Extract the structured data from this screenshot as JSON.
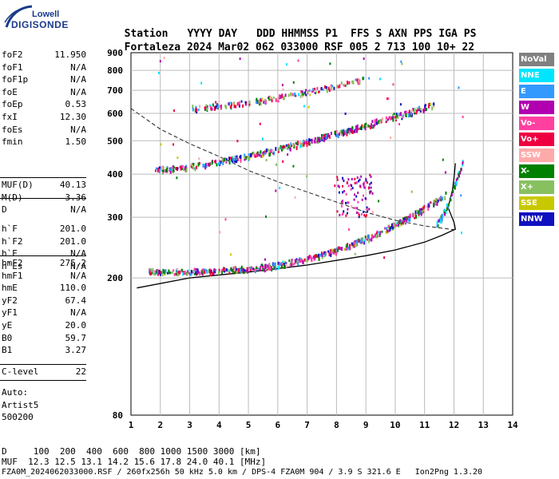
{
  "logo": {
    "line1": "Lowell",
    "line2": "DIGISONDE"
  },
  "header": {
    "labels": [
      "Station",
      "YYYY DAY",
      "DDD HHMMSS",
      "P1",
      "FFS",
      "S",
      "AXN",
      "PPS",
      "IGA",
      "PS"
    ],
    "station": "Fortaleza",
    "year": "2024",
    "day": "Mar02",
    "doy": "062",
    "time": "033000",
    "p1": "RSF",
    "ffs": "005",
    "s": "2",
    "axn": "713",
    "pps": "100",
    "iga": "10+",
    "ps": "22"
  },
  "params_group1": [
    {
      "k": "foF2",
      "v": "11.950"
    },
    {
      "k": "foF1",
      "v": "N/A"
    },
    {
      "k": "foF1p",
      "v": "N/A"
    },
    {
      "k": "foE",
      "v": "N/A"
    },
    {
      "k": "foEp",
      "v": "0.53"
    },
    {
      "k": "fxI",
      "v": "12.30"
    },
    {
      "k": "foEs",
      "v": "N/A"
    },
    {
      "k": "fmin",
      "v": "1.50"
    }
  ],
  "params_group2": [
    {
      "k": "MUF(D)",
      "v": "40.13"
    },
    {
      "k": "M(D)",
      "v": "3.36"
    },
    {
      "k": "D",
      "v": "N/A"
    }
  ],
  "params_group3": [
    {
      "k": "h`F",
      "v": "201.0"
    },
    {
      "k": "h`F2",
      "v": "201.0"
    },
    {
      "k": "h`E",
      "v": "N/A"
    },
    {
      "k": "h`Es",
      "v": "N/A"
    }
  ],
  "params_group4": [
    {
      "k": "hmF2",
      "v": "275.2"
    },
    {
      "k": "hmF1",
      "v": "N/A"
    },
    {
      "k": "hmE",
      "v": "110.0"
    },
    {
      "k": "yF2",
      "v": "67.4"
    },
    {
      "k": "yF1",
      "v": "N/A"
    },
    {
      "k": "yE",
      "v": "20.0"
    },
    {
      "k": "B0",
      "v": "59.7"
    },
    {
      "k": "B1",
      "v": "3.27"
    }
  ],
  "params_group5": [
    {
      "k": "C-level",
      "v": "22"
    }
  ],
  "auto": {
    "line1": "Auto:",
    "line2": "Artist5",
    "line3": "500200"
  },
  "legend": [
    {
      "label": "NoVal",
      "bg": "#808080",
      "fg": "#ffffff"
    },
    {
      "label": "NNE",
      "bg": "#00e5ff",
      "fg": "#ffffff"
    },
    {
      "label": "E",
      "bg": "#3399ff",
      "fg": "#ffffff"
    },
    {
      "label": "W",
      "bg": "#b000b0",
      "fg": "#ffffff"
    },
    {
      "label": "Vo-",
      "bg": "#ff40a0",
      "fg": "#ffffff"
    },
    {
      "label": "Vo+",
      "bg": "#ee0040",
      "fg": "#ffffff"
    },
    {
      "label": "SSW",
      "bg": "#ffaaaa",
      "fg": "#ffffff"
    },
    {
      "label": "X-",
      "bg": "#008000",
      "fg": "#ffffff"
    },
    {
      "label": "X+",
      "bg": "#88c060",
      "fg": "#ffffff"
    },
    {
      "label": "SSE",
      "bg": "#c8c800",
      "fg": "#ffffff"
    },
    {
      "label": "NNW",
      "bg": "#1010c0",
      "fg": "#ffffff"
    }
  ],
  "chart_data": {
    "type": "scatter",
    "xlabel": "",
    "ylabel": "",
    "xlim": [
      1,
      14
    ],
    "ylim": [
      80,
      900
    ],
    "yscale": "log",
    "xticks": [
      "1",
      "2",
      "3",
      "4",
      "5",
      "6",
      "7",
      "8",
      "9",
      "10",
      "11",
      "12",
      "13",
      "14"
    ],
    "yticks": [
      "80",
      "200",
      "300",
      "400",
      "500",
      "600",
      "700",
      "800",
      "900"
    ],
    "grid": true,
    "profile_solid": [
      [
        1.2,
        187
      ],
      [
        3,
        200
      ],
      [
        5,
        208
      ],
      [
        7,
        218
      ],
      [
        9,
        232
      ],
      [
        10,
        241
      ],
      [
        11,
        254
      ],
      [
        11.6,
        266
      ],
      [
        12.05,
        277
      ],
      [
        12.0,
        290
      ],
      [
        11.8,
        320
      ],
      [
        11.95,
        360
      ],
      [
        12.0,
        390
      ],
      [
        12.05,
        430
      ]
    ],
    "profile_dashed": [
      [
        1.0,
        620
      ],
      [
        2,
        540
      ],
      [
        3,
        490
      ],
      [
        4,
        450
      ],
      [
        5,
        410
      ],
      [
        6,
        380
      ],
      [
        7,
        355
      ],
      [
        8,
        332
      ],
      [
        9,
        310
      ],
      [
        10,
        294
      ],
      [
        11,
        283
      ],
      [
        12,
        276
      ]
    ],
    "traces": [
      {
        "name": "F2 1st hop",
        "f_start": 1.6,
        "f_end": 11.7,
        "h_start": 210,
        "h_end": 350
      },
      {
        "name": "F2 2nd hop",
        "f_start": 1.8,
        "f_end": 11.3,
        "h_start": 415,
        "h_end": 640
      },
      {
        "name": "F2 3rd hop",
        "f_start": 2.9,
        "f_end": 9.0,
        "h_start": 625,
        "h_end": 760
      }
    ]
  },
  "footer": {
    "line1": "D     100  200  400  600  800 1000 1500 3000 [km]",
    "line2": "MUF  12.3 12.5 13.1 14.2 15.6 17.8 24.0 40.1 [MHz]",
    "line3": "FZA0M_2024062033000.RSF / 260fx256h 50 kHz 5.0 km / DPS-4 FZA0M 904 / 3.9 S 321.6 E   Ion2Png 1.3.20"
  }
}
